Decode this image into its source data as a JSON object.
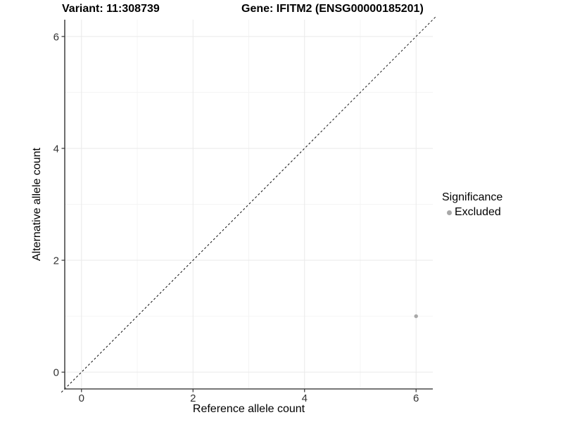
{
  "chart_data": {
    "type": "scatter",
    "title_left": "Variant: 11:308739",
    "title_right": "Gene: IFITM2 (ENSG00000185201)",
    "xlabel": "Reference allele count",
    "ylabel": "Alternative allele count",
    "xlim": [
      -0.3,
      6.3
    ],
    "ylim": [
      -0.3,
      6.3
    ],
    "x_ticks": [
      0,
      2,
      4,
      6
    ],
    "y_ticks": [
      0,
      2,
      4,
      6
    ],
    "x_minor_ticks": [
      1,
      3,
      5
    ],
    "y_minor_ticks": [
      1,
      3,
      5
    ],
    "grid": "major+minor",
    "reference_line": {
      "slope": 1,
      "intercept": 0,
      "style": "dashed",
      "color": "#111111"
    },
    "series": [
      {
        "name": "Excluded",
        "color": "#a8a8a8",
        "points": [
          {
            "x": 6,
            "y": 1
          }
        ]
      }
    ],
    "legend": {
      "title": "Significance",
      "position": "right",
      "items": [
        {
          "label": "Excluded",
          "color": "#a8a8a8"
        }
      ]
    },
    "colors": {
      "background": "#ffffff",
      "grid_major": "#e9e9e9",
      "grid_minor": "#f4f4f4",
      "axis_line": "#4a4a4a",
      "tick_mark": "#333333",
      "tick_label": "#333333"
    }
  }
}
